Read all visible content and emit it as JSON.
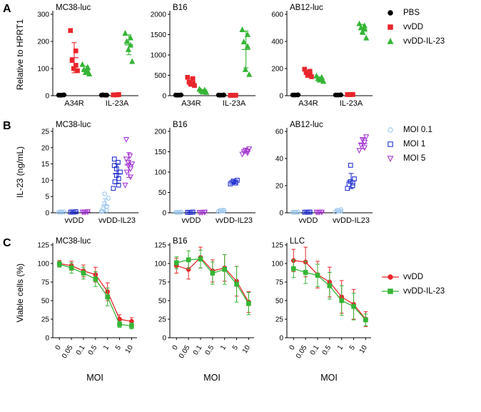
{
  "panels": [
    {
      "letter": "A",
      "ylabel": "Relative to HPRT1"
    },
    {
      "letter": "B",
      "ylabel": "IL-23 (ng/mL)"
    },
    {
      "letter": "C",
      "ylabel": "Viable cells (%)"
    }
  ],
  "legends": {
    "a": [
      {
        "label": "PBS",
        "marker": "circle",
        "filled": true,
        "color": "#000000"
      },
      {
        "label": "vvDD",
        "marker": "square",
        "filled": true,
        "color": "#e8262d"
      },
      {
        "label": "vvDD-IL-23",
        "marker": "triangle",
        "filled": true,
        "color": "#35b535"
      }
    ],
    "b": [
      {
        "label": "MOI 0.1",
        "marker": "circle",
        "filled": false,
        "color": "#9ec8ef"
      },
      {
        "label": "MOI 1",
        "marker": "square",
        "filled": false,
        "color": "#2430cf"
      },
      {
        "label": "MOI 5",
        "marker": "triangle-down",
        "filled": false,
        "color": "#a63bd4"
      }
    ],
    "c": [
      {
        "label": "vvDD",
        "marker": "circle",
        "filled": true,
        "color": "#e8262d",
        "line": true
      },
      {
        "label": "vvDD-IL-23",
        "marker": "square",
        "filled": true,
        "color": "#35b535",
        "line": true
      }
    ]
  },
  "chart_data": [
    {
      "type": "scatter",
      "title": "MC38-luc",
      "ylim": [
        0,
        300
      ],
      "yticks": [
        0,
        100,
        200,
        300
      ],
      "categories": [
        "A34R",
        "IL-23A"
      ],
      "series": [
        {
          "name": "PBS",
          "marker": "circle",
          "filled": true,
          "color": "#000000",
          "values": [
            [
              2,
              3,
              2,
              3,
              2
            ],
            [
              2,
              2,
              3,
              2,
              2
            ]
          ]
        },
        {
          "name": "vvDD",
          "marker": "square",
          "filled": true,
          "color": "#e8262d",
          "values": [
            [
              240,
              165,
              130,
              112,
              100,
              92
            ],
            [
              3,
              4,
              3,
              4,
              3
            ]
          ]
        },
        {
          "name": "vvDD-IL-23",
          "marker": "triangle",
          "filled": true,
          "color": "#35b535",
          "values": [
            [
              115,
              105,
              96,
              90,
              85,
              80
            ],
            [
              230,
              213,
              200,
              186,
              170,
              126
            ]
          ]
        }
      ]
    },
    {
      "type": "scatter",
      "title": "B16",
      "ylim": [
        0,
        2000
      ],
      "yticks": [
        0,
        500,
        1000,
        1500,
        2000
      ],
      "categories": [
        "A34R",
        "IL-23A"
      ],
      "series": [
        {
          "name": "PBS",
          "marker": "circle",
          "filled": true,
          "color": "#000000",
          "values": [
            [
              15,
              18,
              12,
              16,
              14
            ],
            [
              15,
              18,
              12,
              16,
              14
            ]
          ]
        },
        {
          "name": "vvDD",
          "marker": "square",
          "filled": true,
          "color": "#e8262d",
          "values": [
            [
              450,
              420,
              330,
              300,
              280,
              250
            ],
            [
              10,
              12,
              9,
              11,
              10
            ]
          ]
        },
        {
          "name": "vvDD-IL-23",
          "marker": "triangle",
          "filled": true,
          "color": "#35b535",
          "values": [
            [
              160,
              140,
              120,
              100,
              90,
              80
            ],
            [
              1620,
              1500,
              1320,
              1210,
              640,
              520
            ]
          ]
        }
      ]
    },
    {
      "type": "scatter",
      "title": "AB12-luc",
      "ylim": [
        0,
        600
      ],
      "yticks": [
        0,
        200,
        400,
        600
      ],
      "categories": [
        "A34R",
        "IL-23A"
      ],
      "series": [
        {
          "name": "PBS",
          "marker": "circle",
          "filled": true,
          "color": "#000000",
          "values": [
            [
              5,
              6,
              5,
              6,
              5
            ],
            [
              5,
              6,
              5,
              6,
              5
            ]
          ]
        },
        {
          "name": "vvDD",
          "marker": "square",
          "filled": true,
          "color": "#e8262d",
          "values": [
            [
              195,
              180,
              170,
              160,
              150,
              140
            ],
            [
              8,
              9,
              8,
              9,
              8
            ]
          ]
        },
        {
          "name": "vvDD-IL-23",
          "marker": "triangle",
          "filled": true,
          "color": "#35b535",
          "values": [
            [
              145,
              135,
              125,
              120,
              115,
              105
            ],
            [
              530,
              515,
              500,
              490,
              470,
              425
            ]
          ]
        }
      ]
    },
    {
      "type": "scatter",
      "title": "MC38-luc",
      "ylim": [
        0,
        25
      ],
      "yticks": [
        0,
        5,
        10,
        15,
        20,
        25
      ],
      "categories": [
        "vvDD",
        "vvDD-IL23"
      ],
      "series": [
        {
          "name": "MOI 0.1",
          "marker": "circle",
          "filled": false,
          "color": "#9ec8ef",
          "values": [
            [
              0.2,
              0.3,
              0.25,
              0.3,
              0.2
            ],
            [
              0.4,
              0.7,
              1.2,
              2,
              3,
              4.5,
              5.8,
              0.5
            ]
          ]
        },
        {
          "name": "MOI 1",
          "marker": "square",
          "filled": false,
          "color": "#2430cf",
          "values": [
            [
              0.2,
              0.3,
              0.25,
              0.3,
              0.2
            ],
            [
              7.5,
              8.5,
              9.5,
              10.5,
              11.5,
              12.5,
              13.5,
              14.5,
              15.5,
              16.5
            ]
          ]
        },
        {
          "name": "MOI 5",
          "marker": "triangle-down",
          "filled": false,
          "color": "#a63bd4",
          "values": [
            [
              0.2,
              0.3,
              0.25,
              0.3,
              0.2
            ],
            [
              8.5,
              11,
              12.5,
              13.5,
              14.5,
              15,
              15.5,
              16.5,
              17.5,
              22.5
            ]
          ]
        }
      ]
    },
    {
      "type": "scatter",
      "title": "B16",
      "ylim": [
        0,
        200
      ],
      "yticks": [
        0,
        50,
        100,
        150,
        200
      ],
      "categories": [
        "vvDD",
        "vvDD-IL23"
      ],
      "series": [
        {
          "name": "MOI 0.1",
          "marker": "circle",
          "filled": false,
          "color": "#9ec8ef",
          "values": [
            [
              1,
              1.5,
              1.2,
              1.5,
              1
            ],
            [
              3.5,
              4.5,
              5.5,
              6.5,
              5
            ]
          ]
        },
        {
          "name": "MOI 1",
          "marker": "square",
          "filled": false,
          "color": "#2430cf",
          "values": [
            [
              1,
              1.5,
              1.2,
              1.5,
              1
            ],
            [
              71,
              73,
              75,
              76,
              78,
              80
            ]
          ]
        },
        {
          "name": "MOI 5",
          "marker": "triangle-down",
          "filled": false,
          "color": "#a63bd4",
          "values": [
            [
              1,
              1.5,
              1.2,
              1.5,
              1
            ],
            [
              144,
              147,
              150,
              152,
              154,
              157
            ]
          ]
        }
      ]
    },
    {
      "type": "scatter",
      "title": "AB12-luc",
      "ylim": [
        0,
        60
      ],
      "yticks": [
        0,
        20,
        40,
        60
      ],
      "categories": [
        "vvDD",
        "vvDD-IL23"
      ],
      "series": [
        {
          "name": "MOI 0.1",
          "marker": "circle",
          "filled": false,
          "color": "#9ec8ef",
          "values": [
            [
              0.4,
              0.5,
              0.45,
              0.5,
              0.4
            ],
            [
              0.8,
              1.2,
              1.8,
              2.4,
              1.5
            ]
          ]
        },
        {
          "name": "MOI 1",
          "marker": "square",
          "filled": false,
          "color": "#2430cf",
          "values": [
            [
              0.4,
              0.5,
              0.45,
              0.5,
              0.4
            ],
            [
              18,
              20,
              21,
              22,
              23,
              25,
              35
            ]
          ]
        },
        {
          "name": "MOI 5",
          "marker": "triangle-down",
          "filled": false,
          "color": "#a63bd4",
          "values": [
            [
              0.4,
              0.5,
              0.45,
              0.5,
              0.4
            ],
            [
              46,
              48,
              50,
              52,
              54,
              56
            ]
          ]
        }
      ]
    },
    {
      "type": "line",
      "title": "MC38-luc",
      "ylim": [
        0,
        125
      ],
      "yticks": [
        0,
        25,
        50,
        75,
        100,
        125
      ],
      "x_labels": [
        "0",
        "0.05",
        "0.1",
        "0.5",
        "1",
        "5",
        "10"
      ],
      "xlabel": "MOI",
      "series": [
        {
          "name": "vvDD",
          "marker": "circle",
          "filled": true,
          "color": "#e8262d",
          "values": [
            100,
            97,
            90,
            85,
            62,
            25,
            22
          ],
          "errors": [
            4,
            6,
            8,
            10,
            12,
            6,
            5
          ]
        },
        {
          "name": "vvDD-IL-23",
          "marker": "square",
          "filled": true,
          "color": "#35b535",
          "values": [
            99,
            94,
            87,
            79,
            55,
            18,
            16
          ],
          "errors": [
            4,
            7,
            8,
            10,
            12,
            4,
            4
          ]
        }
      ]
    },
    {
      "type": "line",
      "title": "B16",
      "ylim": [
        0,
        125
      ],
      "yticks": [
        0,
        25,
        50,
        75,
        100,
        125
      ],
      "x_labels": [
        "0",
        "0.05",
        "0.1",
        "0.5",
        "1",
        "5",
        "10"
      ],
      "xlabel": "MOI",
      "series": [
        {
          "name": "vvDD",
          "marker": "circle",
          "filled": true,
          "color": "#e8262d",
          "values": [
            97,
            92,
            108,
            90,
            94,
            76,
            48
          ],
          "errors": [
            10,
            13,
            14,
            15,
            18,
            20,
            14
          ]
        },
        {
          "name": "vvDD-IL-23",
          "marker": "square",
          "filled": true,
          "color": "#35b535",
          "values": [
            101,
            105,
            106,
            87,
            92,
            72,
            46
          ],
          "errors": [
            8,
            12,
            12,
            15,
            20,
            24,
            15
          ]
        }
      ]
    },
    {
      "type": "line",
      "title": "LLC",
      "ylim": [
        0,
        125
      ],
      "yticks": [
        0,
        25,
        50,
        75,
        100,
        125
      ],
      "x_labels": [
        "0",
        "0.05",
        "0.1",
        "0.5",
        "1",
        "5",
        "10"
      ],
      "xlabel": "MOI",
      "series": [
        {
          "name": "vvDD",
          "marker": "circle",
          "filled": true,
          "color": "#e8262d",
          "values": [
            104,
            102,
            85,
            75,
            55,
            45,
            25
          ],
          "errors": [
            15,
            20,
            18,
            20,
            22,
            20,
            10
          ]
        },
        {
          "name": "vvDD-IL-23",
          "marker": "square",
          "filled": true,
          "color": "#35b535",
          "values": [
            93,
            88,
            84,
            70,
            50,
            42,
            24
          ],
          "errors": [
            12,
            15,
            15,
            18,
            20,
            18,
            8
          ]
        }
      ]
    }
  ]
}
